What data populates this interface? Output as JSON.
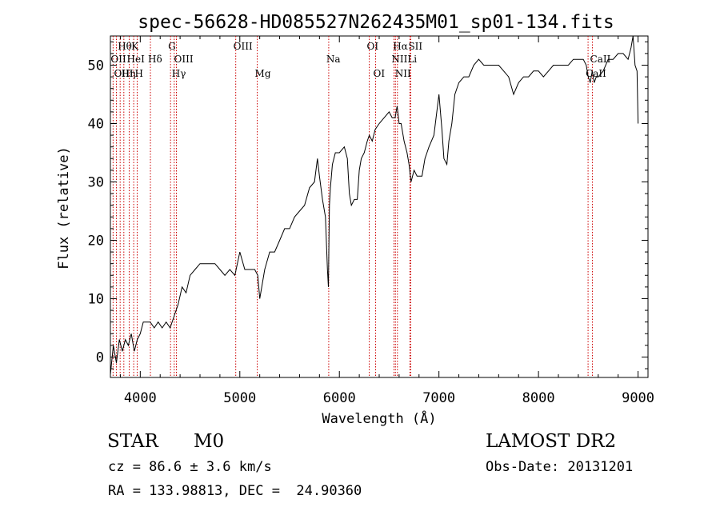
{
  "chart_data": {
    "type": "line",
    "title": "spec-56628-HD085527N262435M01_sp01-134.fits",
    "xlabel": "Wavelength (Å)",
    "ylabel": "Flux (relative)",
    "xlim": [
      3700,
      9100
    ],
    "ylim": [
      -3.5,
      55
    ],
    "x_ticks": [
      4000,
      5000,
      6000,
      7000,
      8000,
      9000
    ],
    "y_ticks": [
      0,
      10,
      20,
      30,
      40,
      50
    ],
    "grid": false,
    "line_color": "#000000",
    "marker_color": "#cc0000",
    "series": [
      {
        "x": [
          3700,
          3730,
          3760,
          3790,
          3820,
          3850,
          3880,
          3910,
          3940,
          3970,
          4000,
          4030,
          4060,
          4100,
          4140,
          4180,
          4220,
          4260,
          4300,
          4340,
          4380,
          4420,
          4460,
          4500,
          4550,
          4600,
          4650,
          4700,
          4750,
          4800,
          4850,
          4900,
          4950,
          5000,
          5050,
          5100,
          5150,
          5180,
          5200,
          5250,
          5300,
          5350,
          5400,
          5450,
          5500,
          5550,
          5600,
          5650,
          5700,
          5750,
          5780,
          5800,
          5830,
          5860,
          5880,
          5890,
          5895,
          5900,
          5910,
          5930,
          5960,
          6000,
          6050,
          6080,
          6100,
          6120,
          6150,
          6180,
          6200,
          6220,
          6250,
          6280,
          6300,
          6330,
          6360,
          6400,
          6450,
          6500,
          6530,
          6560,
          6580,
          6600,
          6620,
          6650,
          6680,
          6700,
          6720,
          6750,
          6780,
          6800,
          6830,
          6860,
          6880,
          6900,
          6950,
          7000,
          7030,
          7050,
          7080,
          7100,
          7130,
          7160,
          7200,
          7250,
          7300,
          7350,
          7400,
          7450,
          7500,
          7550,
          7600,
          7650,
          7700,
          7750,
          7800,
          7850,
          7900,
          7950,
          8000,
          8050,
          8100,
          8150,
          8200,
          8250,
          8300,
          8350,
          8400,
          8450,
          8480,
          8500,
          8520,
          8540,
          8560,
          8580,
          8600,
          8650,
          8700,
          8750,
          8800,
          8850,
          8900,
          8930,
          8950,
          8970,
          8990,
          9000
        ],
        "y": [
          -3,
          2,
          -1,
          3,
          1,
          3,
          2,
          4,
          1,
          3,
          4,
          6,
          6,
          6,
          5,
          6,
          5,
          6,
          5,
          7,
          9,
          12,
          11,
          14,
          15,
          16,
          16,
          16,
          16,
          15,
          14,
          15,
          14,
          18,
          15,
          15,
          15,
          14,
          10,
          15,
          18,
          18,
          20,
          22,
          22,
          24,
          25,
          26,
          29,
          30,
          34,
          31,
          27,
          24,
          15,
          12,
          20,
          26,
          29,
          33,
          35,
          35,
          36,
          34,
          28,
          26,
          27,
          27,
          32,
          34,
          35,
          37,
          38,
          37,
          39,
          40,
          41,
          42,
          41,
          41,
          43,
          40,
          40,
          37,
          35,
          33,
          30,
          32,
          31,
          31,
          31,
          34,
          35,
          36,
          38,
          45,
          39,
          34,
          33,
          37,
          40,
          45,
          47,
          48,
          48,
          50,
          51,
          50,
          50,
          50,
          50,
          49,
          48,
          45,
          47,
          48,
          48,
          49,
          49,
          48,
          49,
          50,
          50,
          50,
          50,
          51,
          51,
          51,
          50,
          48,
          47,
          49,
          47,
          48,
          48,
          49,
          51,
          51,
          52,
          52,
          51,
          53,
          55,
          50,
          49,
          40
        ]
      }
    ],
    "spectral_lines": [
      {
        "label": "Hθ",
        "x": 3798,
        "row": 1
      },
      {
        "label": "OII",
        "x": 3727,
        "row": 2
      },
      {
        "label": "OIII",
        "x": 3760,
        "row": 3
      },
      {
        "label": "K",
        "x": 3934,
        "row": 1
      },
      {
        "label": "HeI",
        "x": 3889,
        "row": 2
      },
      {
        "label": "Hη",
        "x": 3835,
        "row": 3
      },
      {
        "label": "H",
        "x": 3969,
        "row": 3
      },
      {
        "label": "Hδ",
        "x": 4102,
        "row": 2
      },
      {
        "label": "G",
        "x": 4304,
        "row": 1
      },
      {
        "label": "OIII",
        "x": 4363,
        "row": 2
      },
      {
        "label": "Hγ",
        "x": 4341,
        "row": 3
      },
      {
        "label": "OIII",
        "x": 4959,
        "row": 1
      },
      {
        "label": "Mg",
        "x": 5175,
        "row": 3
      },
      {
        "label": "Na",
        "x": 5893,
        "row": 2
      },
      {
        "label": "OI",
        "x": 6300,
        "row": 1
      },
      {
        "label": "OI",
        "x": 6364,
        "row": 3
      },
      {
        "label": "Hα",
        "x": 6563,
        "row": 1
      },
      {
        "label": "SII",
        "x": 6717,
        "row": 1
      },
      {
        "label": "NII",
        "x": 6548,
        "row": 2
      },
      {
        "label": "Li",
        "x": 6708,
        "row": 2
      },
      {
        "label": "NII",
        "x": 6583,
        "row": 3
      },
      {
        "label": "CaII",
        "x": 8542,
        "row": 2
      },
      {
        "label": "CaII",
        "x": 8498,
        "row": 3
      }
    ],
    "marker_lines": [
      3727,
      3760,
      3798,
      3835,
      3889,
      3934,
      3969,
      4102,
      4304,
      4341,
      4363,
      4959,
      5175,
      5893,
      6300,
      6364,
      6548,
      6563,
      6583,
      6708,
      6717,
      8498,
      8542
    ]
  },
  "info": {
    "class_label": "STAR",
    "subclass_label": "M0",
    "survey": "LAMOST DR2",
    "cz": "cz = 86.6 ± 3.6 km/s",
    "obs_date": "Obs-Date: 20131201",
    "coords": "RA = 133.98813, DEC =  24.90360"
  }
}
